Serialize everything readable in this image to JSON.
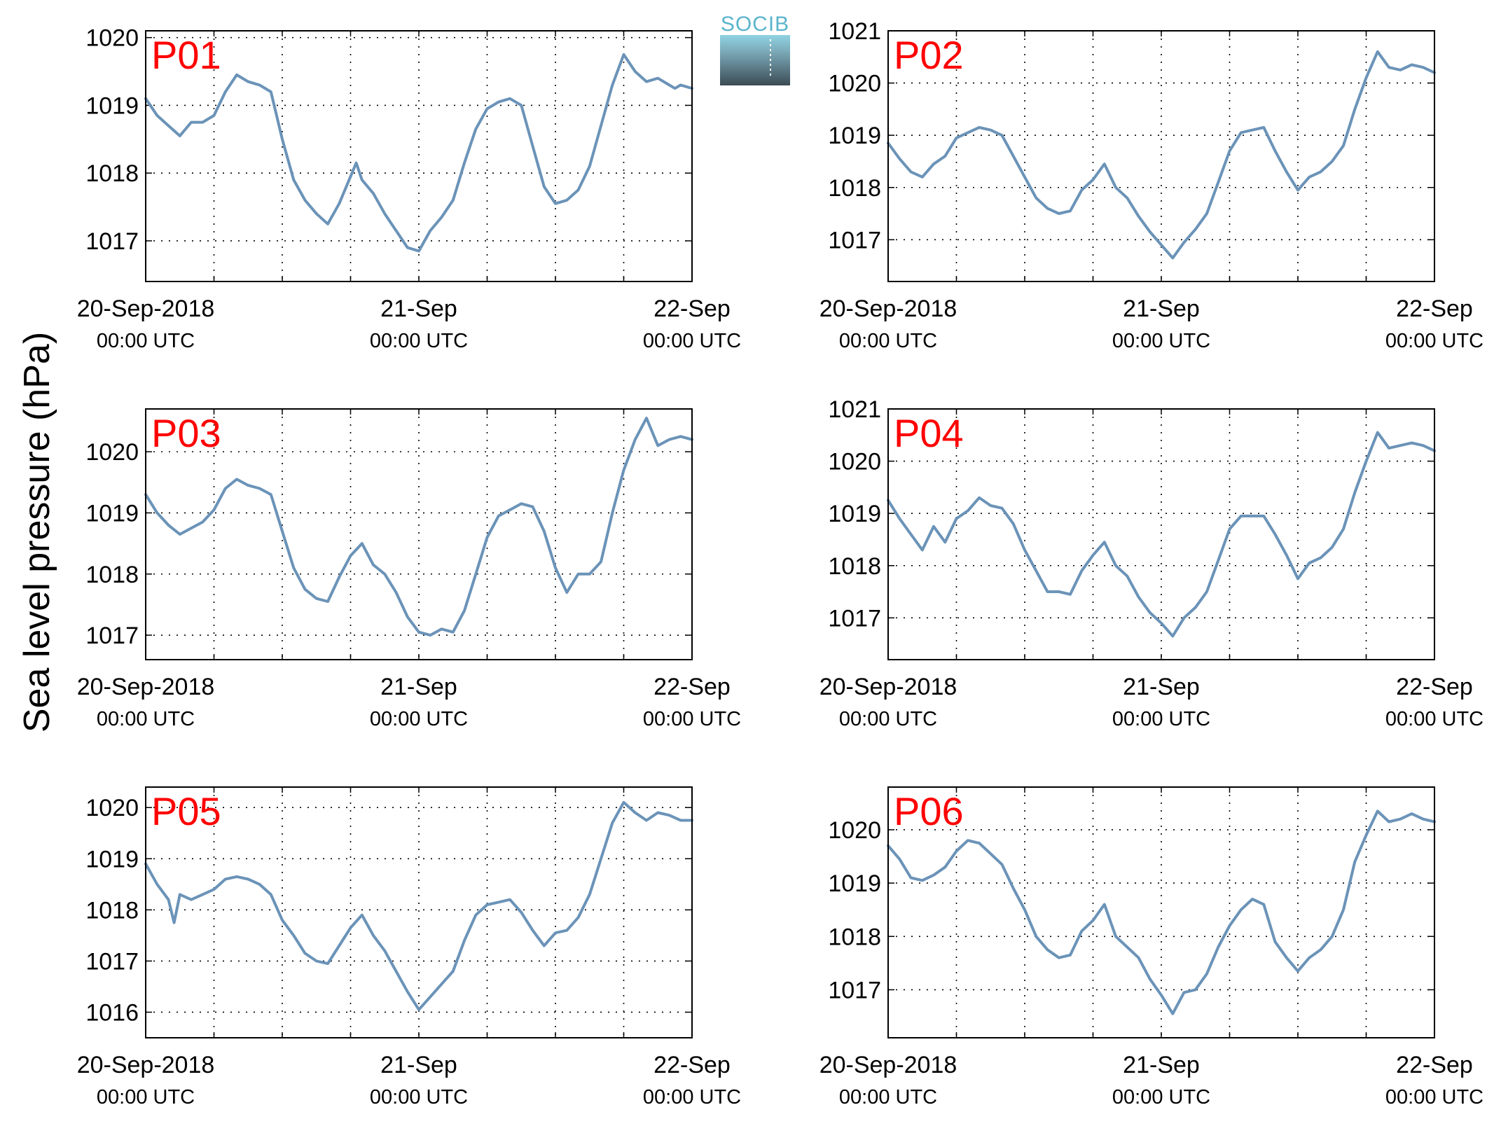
{
  "ylabel": "Sea level pressure (hPa)",
  "logo": {
    "text": "SOCIB"
  },
  "colors": {
    "line": "#6b93b8",
    "panel_label": "#ff0000",
    "grid": "#000000"
  },
  "chart_data": [
    {
      "type": "line",
      "panel": "P01",
      "x_ticks": [
        "20-Sep-2018",
        "21-Sep",
        "22-Sep"
      ],
      "x_tick_sub": "00:00 UTC",
      "xlim_hours": [
        0,
        48
      ],
      "ylim": [
        1016.4,
        1020.1
      ],
      "yticks": [
        1017,
        1018,
        1019,
        1020
      ],
      "grid": true,
      "series": [
        {
          "x": [
            0,
            1,
            2,
            3,
            4,
            5,
            6,
            7,
            8,
            9,
            10,
            11,
            12,
            13,
            14,
            15,
            16,
            17,
            18,
            18.5,
            19,
            20,
            21,
            22,
            23,
            24,
            25,
            26,
            27,
            28,
            28.5,
            29,
            30,
            31,
            32,
            33,
            34,
            35,
            36,
            37,
            38,
            39,
            40,
            41,
            42,
            43,
            44,
            45,
            46,
            46.5,
            47,
            48
          ],
          "y": [
            1019.1,
            1018.85,
            1018.7,
            1018.55,
            1018.75,
            1018.75,
            1018.85,
            1019.2,
            1019.45,
            1019.35,
            1019.3,
            1019.2,
            1018.5,
            1017.9,
            1017.6,
            1017.4,
            1017.25,
            1017.55,
            1017.95,
            1018.15,
            1017.9,
            1017.7,
            1017.4,
            1017.15,
            1016.9,
            1016.85,
            1017.15,
            1017.35,
            1017.6,
            1018.15,
            1018.4,
            1018.65,
            1018.95,
            1019.05,
            1019.1,
            1019.0,
            1018.4,
            1017.8,
            1017.55,
            1017.6,
            1017.75,
            1018.1,
            1018.7,
            1019.3,
            1019.75,
            1019.5,
            1019.35,
            1019.4,
            1019.3,
            1019.25,
            1019.3,
            1019.25
          ]
        }
      ]
    },
    {
      "type": "line",
      "panel": "P02",
      "x_ticks": [
        "20-Sep-2018",
        "21-Sep",
        "22-Sep"
      ],
      "x_tick_sub": "00:00 UTC",
      "xlim_hours": [
        0,
        48
      ],
      "ylim": [
        1016.2,
        1021.0
      ],
      "yticks": [
        1017,
        1018,
        1019,
        1020,
        1021
      ],
      "grid": true,
      "series": [
        {
          "x": [
            0,
            1,
            2,
            3,
            4,
            5,
            6,
            7,
            8,
            9,
            10,
            11,
            12,
            13,
            14,
            15,
            16,
            17,
            18,
            19,
            20,
            21,
            22,
            23,
            24,
            25,
            26,
            27,
            28,
            29,
            30,
            31,
            32,
            33,
            34,
            35,
            36,
            37,
            38,
            39,
            40,
            41,
            42,
            43,
            44,
            45,
            46,
            47,
            48
          ],
          "y": [
            1018.85,
            1018.55,
            1018.3,
            1018.2,
            1018.45,
            1018.6,
            1018.95,
            1019.05,
            1019.15,
            1019.1,
            1019.0,
            1018.6,
            1018.2,
            1017.8,
            1017.6,
            1017.5,
            1017.55,
            1017.95,
            1018.15,
            1018.45,
            1018.0,
            1017.8,
            1017.45,
            1017.15,
            1016.9,
            1016.65,
            1016.95,
            1017.2,
            1017.5,
            1018.1,
            1018.7,
            1019.05,
            1019.1,
            1019.15,
            1018.7,
            1018.3,
            1017.95,
            1018.2,
            1018.3,
            1018.5,
            1018.8,
            1019.5,
            1020.1,
            1020.6,
            1020.3,
            1020.25,
            1020.35,
            1020.3,
            1020.2
          ]
        }
      ]
    },
    {
      "type": "line",
      "panel": "P03",
      "x_ticks": [
        "20-Sep-2018",
        "21-Sep",
        "22-Sep"
      ],
      "x_tick_sub": "00:00 UTC",
      "xlim_hours": [
        0,
        48
      ],
      "ylim": [
        1016.6,
        1020.7
      ],
      "yticks": [
        1017,
        1018,
        1019,
        1020
      ],
      "grid": true,
      "series": [
        {
          "x": [
            0,
            1,
            2,
            3,
            4,
            5,
            6,
            7,
            8,
            9,
            10,
            11,
            12,
            13,
            14,
            15,
            16,
            17,
            18,
            19,
            20,
            21,
            22,
            23,
            24,
            25,
            26,
            27,
            28,
            29,
            30,
            31,
            32,
            33,
            34,
            35,
            36,
            37,
            38,
            39,
            40,
            41,
            42,
            43,
            44,
            45,
            46,
            47,
            48
          ],
          "y": [
            1019.3,
            1019.0,
            1018.8,
            1018.65,
            1018.75,
            1018.85,
            1019.05,
            1019.4,
            1019.55,
            1019.45,
            1019.4,
            1019.3,
            1018.7,
            1018.1,
            1017.75,
            1017.6,
            1017.55,
            1017.95,
            1018.3,
            1018.5,
            1018.15,
            1018.0,
            1017.7,
            1017.3,
            1017.05,
            1017.0,
            1017.1,
            1017.05,
            1017.4,
            1018.0,
            1018.6,
            1018.95,
            1019.05,
            1019.15,
            1019.1,
            1018.7,
            1018.1,
            1017.7,
            1018.0,
            1018.0,
            1018.2,
            1019.0,
            1019.7,
            1020.2,
            1020.55,
            1020.1,
            1020.2,
            1020.25,
            1020.2
          ]
        }
      ]
    },
    {
      "type": "line",
      "panel": "P04",
      "x_ticks": [
        "20-Sep-2018",
        "21-Sep",
        "22-Sep"
      ],
      "x_tick_sub": "00:00 UTC",
      "xlim_hours": [
        0,
        48
      ],
      "ylim": [
        1016.2,
        1021.0
      ],
      "yticks": [
        1017,
        1018,
        1019,
        1020,
        1021
      ],
      "grid": true,
      "series": [
        {
          "x": [
            0,
            1,
            2,
            3,
            4,
            5,
            6,
            7,
            8,
            9,
            10,
            11,
            12,
            13,
            14,
            15,
            16,
            17,
            18,
            19,
            20,
            21,
            22,
            23,
            24,
            25,
            26,
            27,
            28,
            29,
            30,
            31,
            32,
            33,
            34,
            35,
            36,
            37,
            38,
            39,
            40,
            41,
            42,
            43,
            44,
            45,
            46,
            47,
            48
          ],
          "y": [
            1019.25,
            1018.9,
            1018.6,
            1018.3,
            1018.75,
            1018.45,
            1018.9,
            1019.05,
            1019.3,
            1019.15,
            1019.1,
            1018.8,
            1018.3,
            1017.9,
            1017.5,
            1017.5,
            1017.45,
            1017.9,
            1018.2,
            1018.45,
            1018.0,
            1017.8,
            1017.4,
            1017.1,
            1016.9,
            1016.65,
            1017.0,
            1017.2,
            1017.5,
            1018.1,
            1018.7,
            1018.95,
            1018.95,
            1018.95,
            1018.6,
            1018.2,
            1017.75,
            1018.05,
            1018.15,
            1018.35,
            1018.7,
            1019.4,
            1020.0,
            1020.55,
            1020.25,
            1020.3,
            1020.35,
            1020.3,
            1020.2
          ]
        }
      ]
    },
    {
      "type": "line",
      "panel": "P05",
      "x_ticks": [
        "20-Sep-2018",
        "21-Sep",
        "22-Sep"
      ],
      "x_tick_sub": "00:00 UTC",
      "xlim_hours": [
        0,
        48
      ],
      "ylim": [
        1015.5,
        1020.4
      ],
      "yticks": [
        1016,
        1017,
        1018,
        1019,
        1020
      ],
      "grid": true,
      "series": [
        {
          "x": [
            0,
            1,
            2,
            2.5,
            3,
            4,
            5,
            6,
            7,
            8,
            9,
            10,
            11,
            12,
            13,
            14,
            15,
            16,
            17,
            18,
            19,
            20,
            21,
            22,
            23,
            24,
            25,
            26,
            27,
            28,
            29,
            30,
            31,
            32,
            33,
            34,
            35,
            36,
            37,
            38,
            39,
            40,
            41,
            42,
            43,
            44,
            45,
            46,
            47,
            48
          ],
          "y": [
            1018.9,
            1018.5,
            1018.2,
            1017.75,
            1018.3,
            1018.2,
            1018.3,
            1018.4,
            1018.6,
            1018.65,
            1018.6,
            1018.5,
            1018.3,
            1017.8,
            1017.5,
            1017.15,
            1017.0,
            1016.95,
            1017.3,
            1017.65,
            1017.9,
            1017.5,
            1017.2,
            1016.8,
            1016.4,
            1016.05,
            1016.3,
            1016.55,
            1016.8,
            1017.4,
            1017.9,
            1018.1,
            1018.15,
            1018.2,
            1017.95,
            1017.6,
            1017.3,
            1017.55,
            1017.6,
            1017.85,
            1018.3,
            1019.0,
            1019.7,
            1020.1,
            1019.9,
            1019.75,
            1019.9,
            1019.85,
            1019.75,
            1019.75
          ]
        }
      ]
    },
    {
      "type": "line",
      "panel": "P06",
      "x_ticks": [
        "20-Sep-2018",
        "21-Sep",
        "22-Sep"
      ],
      "x_tick_sub": "00:00 UTC",
      "xlim_hours": [
        0,
        48
      ],
      "ylim": [
        1016.1,
        1020.8
      ],
      "yticks": [
        1017,
        1018,
        1019,
        1020
      ],
      "grid": true,
      "series": [
        {
          "x": [
            0,
            1,
            2,
            3,
            4,
            5,
            6,
            7,
            8,
            9,
            10,
            11,
            12,
            13,
            14,
            15,
            16,
            17,
            18,
            19,
            20,
            21,
            22,
            23,
            24,
            25,
            26,
            27,
            28,
            29,
            30,
            31,
            32,
            33,
            34,
            35,
            36,
            37,
            38,
            39,
            40,
            41,
            42,
            43,
            44,
            45,
            46,
            47,
            48
          ],
          "y": [
            1019.7,
            1019.45,
            1019.1,
            1019.05,
            1019.15,
            1019.3,
            1019.6,
            1019.8,
            1019.75,
            1019.55,
            1019.35,
            1018.9,
            1018.5,
            1018.0,
            1017.75,
            1017.6,
            1017.65,
            1018.1,
            1018.3,
            1018.6,
            1018.0,
            1017.8,
            1017.6,
            1017.2,
            1016.9,
            1016.55,
            1016.95,
            1017.0,
            1017.3,
            1017.8,
            1018.2,
            1018.5,
            1018.7,
            1018.6,
            1017.9,
            1017.6,
            1017.35,
            1017.6,
            1017.75,
            1018.0,
            1018.5,
            1019.4,
            1019.9,
            1020.35,
            1020.15,
            1020.2,
            1020.3,
            1020.2,
            1020.15
          ]
        }
      ]
    }
  ]
}
